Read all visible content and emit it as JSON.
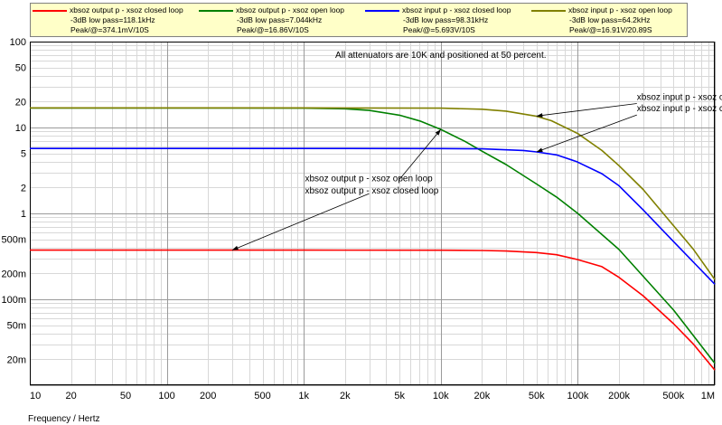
{
  "legend": [
    {
      "name": "xbsoz output p - xsoz closed loop",
      "line1": "-3dB low pass=118.1kHz",
      "line2": "Peak/@=374.1mV/10S",
      "color": "#ff0000"
    },
    {
      "name": "xbsoz output p - xsoz open loop",
      "line1": "-3dB low pass=7.044kHz",
      "line2": "Peak/@=16.86V/10S",
      "color": "#008000"
    },
    {
      "name": "xbsoz input p - xsoz closed loop",
      "line1": "-3dB low pass=98.31kHz",
      "line2": "Peak/@=5.693V/10S",
      "color": "#0000ff"
    },
    {
      "name": "xbsoz input p - xsoz open loop",
      "line1": "-3dB low pass=64.2kHz",
      "line2": "Peak/@=16.91V/20.89S",
      "color": "#808000"
    }
  ],
  "chart_data": {
    "type": "line",
    "xlabel": "Frequency / Hertz",
    "ylabel": "",
    "x_scale": "log",
    "y_scale": "log",
    "xlim": [
      10,
      1000000
    ],
    "ylim": [
      0.01,
      100
    ],
    "grid": true,
    "x_ticks": [
      10,
      20,
      50,
      100,
      200,
      500,
      1000,
      2000,
      5000,
      10000,
      20000,
      50000,
      100000,
      200000,
      500000,
      1000000
    ],
    "x_tick_labels": [
      "10",
      "20",
      "50",
      "100",
      "200",
      "500",
      "1k",
      "2k",
      "5k",
      "10k",
      "20k",
      "50k",
      "100k",
      "200k",
      "500k",
      "1M"
    ],
    "y_ticks": [
      0.02,
      0.05,
      0.1,
      0.2,
      0.5,
      1,
      2,
      5,
      10,
      20,
      50,
      100
    ],
    "y_tick_labels": [
      "20m",
      "50m",
      "100m",
      "200m",
      "500m",
      "1",
      "2",
      "5",
      "10",
      "20",
      "50",
      "100"
    ],
    "series": [
      {
        "name": "xbsoz output p - xsoz closed loop",
        "color": "#ff0000",
        "x": [
          10,
          100,
          1000,
          10000,
          20000,
          30000,
          50000,
          70000,
          100000,
          150000,
          200000,
          300000,
          500000,
          700000,
          1000000
        ],
        "y": [
          0.374,
          0.374,
          0.374,
          0.373,
          0.37,
          0.365,
          0.35,
          0.33,
          0.29,
          0.24,
          0.18,
          0.11,
          0.052,
          0.03,
          0.015
        ]
      },
      {
        "name": "xbsoz output p - xsoz open loop",
        "color": "#008000",
        "x": [
          10,
          100,
          1000,
          2000,
          3000,
          5000,
          7044,
          10000,
          15000,
          20000,
          30000,
          50000,
          70000,
          100000,
          200000,
          500000,
          1000000
        ],
        "y": [
          16.86,
          16.86,
          16.8,
          16.5,
          15.8,
          13.9,
          11.9,
          9.5,
          6.9,
          5.3,
          3.7,
          2.2,
          1.55,
          1.0,
          0.38,
          0.075,
          0.018
        ]
      },
      {
        "name": "xbsoz input p - xsoz closed loop",
        "color": "#0000ff",
        "x": [
          10,
          100,
          1000,
          10000,
          20000,
          40000,
          50000,
          70000,
          98310,
          150000,
          200000,
          300000,
          500000,
          700000,
          1000000
        ],
        "y": [
          5.693,
          5.693,
          5.693,
          5.69,
          5.65,
          5.4,
          5.2,
          4.8,
          4.0,
          2.9,
          2.1,
          1.1,
          0.47,
          0.27,
          0.15
        ]
      },
      {
        "name": "xbsoz input p - xsoz open loop",
        "color": "#808000",
        "x": [
          10,
          100,
          1000,
          10000,
          20000,
          30000,
          50000,
          64200,
          100000,
          150000,
          200000,
          300000,
          500000,
          700000,
          1000000
        ],
        "y": [
          16.91,
          16.91,
          16.91,
          16.8,
          16.3,
          15.5,
          13.5,
          12.0,
          8.5,
          5.4,
          3.6,
          1.9,
          0.72,
          0.38,
          0.17
        ]
      }
    ],
    "annotations": [
      {
        "text": "All attenuators are 10K and positioned at 50 percent.",
        "x": 10000,
        "y": 65
      },
      {
        "text": "xbsoz input p - xsoz open loop",
        "x": 270000,
        "y": 21
      },
      {
        "text": "xbsoz input p - xsoz closed loop",
        "x": 270000,
        "y": 15.5
      },
      {
        "text": "xbsoz output p - xsoz open loop",
        "x": 1020,
        "y": 2.35
      },
      {
        "text": "xbsoz output p - xsoz closed loop",
        "x": 1020,
        "y": 1.7
      }
    ]
  }
}
